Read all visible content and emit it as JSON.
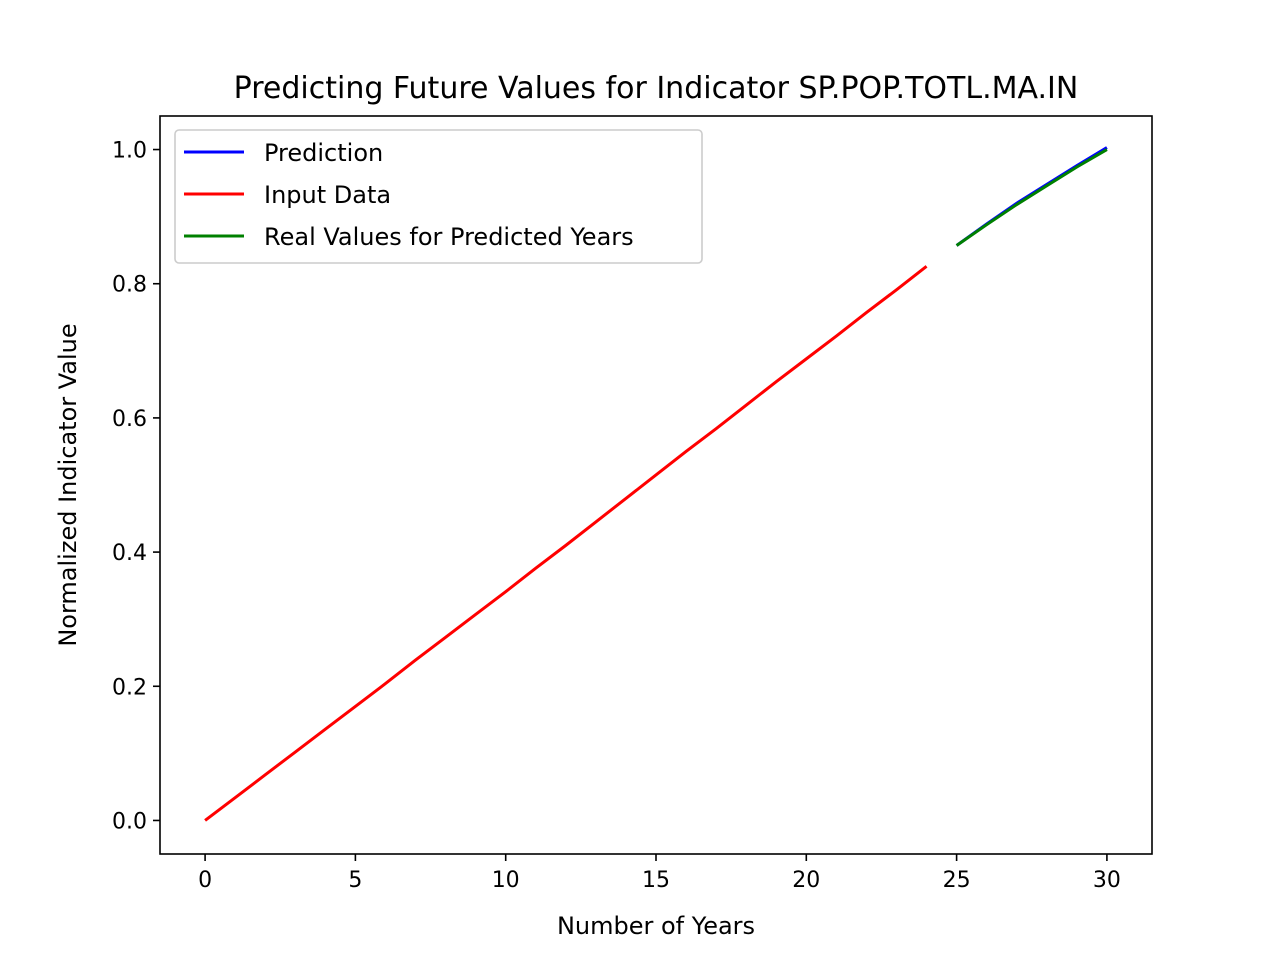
{
  "chart_data": {
    "type": "line",
    "title": "Predicting Future Values for Indicator SP.POP.TOTL.MA.IN",
    "xlabel": "Number of Years",
    "ylabel": "Normalized Indicator Value",
    "xlim": [
      -1.5,
      31.5
    ],
    "ylim": [
      -0.05,
      1.05
    ],
    "xticks": [
      0,
      5,
      10,
      15,
      20,
      25,
      30
    ],
    "xtick_labels": [
      "0",
      "5",
      "10",
      "15",
      "20",
      "25",
      "30"
    ],
    "yticks": [
      0.0,
      0.2,
      0.4,
      0.6,
      0.8,
      1.0
    ],
    "ytick_labels": [
      "0.0",
      "0.2",
      "0.4",
      "0.6",
      "0.8",
      "1.0"
    ],
    "grid": false,
    "legend_position": "top-left",
    "series": [
      {
        "name": "Prediction",
        "color": "#0000ff",
        "x": [
          25,
          26,
          27,
          28,
          29,
          30
        ],
        "y": [
          0.857,
          0.889,
          0.92,
          0.948,
          0.976,
          1.003
        ]
      },
      {
        "name": "Input Data",
        "color": "#ff0000",
        "x": [
          0,
          1,
          2,
          3,
          4,
          5,
          6,
          7,
          8,
          9,
          10,
          11,
          12,
          13,
          14,
          15,
          16,
          17,
          18,
          19,
          20,
          21,
          22,
          23,
          24
        ],
        "y": [
          0.0,
          0.034,
          0.068,
          0.102,
          0.136,
          0.17,
          0.204,
          0.239,
          0.273,
          0.307,
          0.341,
          0.376,
          0.41,
          0.445,
          0.48,
          0.515,
          0.55,
          0.584,
          0.619,
          0.654,
          0.688,
          0.722,
          0.757,
          0.791,
          0.826
        ]
      },
      {
        "name": "Real Values for Predicted Years",
        "color": "#008000",
        "x": [
          25,
          26,
          27,
          28,
          29,
          30
        ],
        "y": [
          0.857,
          0.888,
          0.918,
          0.946,
          0.974,
          1.0
        ]
      }
    ]
  }
}
